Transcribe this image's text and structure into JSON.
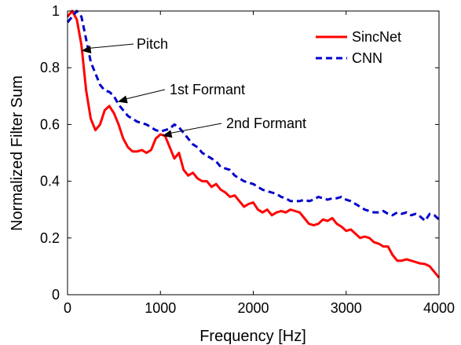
{
  "chart_data": {
    "type": "line",
    "xlabel": "Frequency [Hz]",
    "ylabel": "Normalized Filter Sum",
    "xlim": [
      0,
      4000
    ],
    "ylim": [
      0,
      1
    ],
    "xticks": [
      0,
      1000,
      2000,
      3000,
      4000
    ],
    "yticks": [
      0,
      0.2,
      0.4,
      0.6,
      0.8,
      1
    ],
    "xtick_labels": [
      "0",
      "1000",
      "2000",
      "3000",
      "4000"
    ],
    "ytick_labels": [
      "0",
      "0.2",
      "0.4",
      "0.6",
      "0.8",
      "1"
    ],
    "grid": false,
    "legend_position": "top-right",
    "series": [
      {
        "name": "SincNet",
        "color": "#ff0000",
        "style": "solid",
        "x": [
          0,
          50,
          100,
          150,
          200,
          250,
          300,
          350,
          400,
          450,
          500,
          550,
          600,
          650,
          700,
          750,
          800,
          850,
          900,
          950,
          1000,
          1050,
          1100,
          1150,
          1200,
          1250,
          1300,
          1350,
          1400,
          1450,
          1500,
          1550,
          1600,
          1650,
          1700,
          1750,
          1800,
          1850,
          1900,
          1950,
          2000,
          2050,
          2100,
          2150,
          2200,
          2250,
          2300,
          2350,
          2400,
          2450,
          2500,
          2550,
          2600,
          2650,
          2700,
          2750,
          2800,
          2850,
          2900,
          2950,
          3000,
          3050,
          3100,
          3150,
          3200,
          3250,
          3300,
          3350,
          3400,
          3450,
          3500,
          3550,
          3600,
          3650,
          3700,
          3750,
          3800,
          3850,
          3900,
          3950,
          4000
        ],
        "y": [
          0.98,
          1.0,
          0.97,
          0.88,
          0.72,
          0.62,
          0.58,
          0.6,
          0.65,
          0.665,
          0.64,
          0.6,
          0.55,
          0.52,
          0.505,
          0.505,
          0.51,
          0.5,
          0.51,
          0.55,
          0.565,
          0.56,
          0.52,
          0.48,
          0.5,
          0.44,
          0.42,
          0.43,
          0.41,
          0.4,
          0.4,
          0.38,
          0.39,
          0.37,
          0.36,
          0.345,
          0.35,
          0.33,
          0.31,
          0.32,
          0.325,
          0.3,
          0.29,
          0.3,
          0.28,
          0.29,
          0.295,
          0.29,
          0.3,
          0.295,
          0.29,
          0.27,
          0.25,
          0.245,
          0.25,
          0.265,
          0.26,
          0.27,
          0.25,
          0.24,
          0.225,
          0.23,
          0.215,
          0.2,
          0.205,
          0.2,
          0.185,
          0.18,
          0.17,
          0.17,
          0.14,
          0.12,
          0.12,
          0.125,
          0.12,
          0.115,
          0.11,
          0.108,
          0.1,
          0.08,
          0.06
        ]
      },
      {
        "name": "CNN",
        "color": "#0000cc",
        "style": "dashed",
        "x": [
          0,
          50,
          100,
          150,
          200,
          250,
          300,
          350,
          400,
          450,
          500,
          550,
          600,
          650,
          700,
          750,
          800,
          850,
          900,
          950,
          1000,
          1050,
          1100,
          1150,
          1200,
          1250,
          1300,
          1350,
          1400,
          1450,
          1500,
          1550,
          1600,
          1650,
          1700,
          1750,
          1800,
          1850,
          1900,
          1950,
          2000,
          2050,
          2100,
          2150,
          2200,
          2250,
          2300,
          2350,
          2400,
          2450,
          2500,
          2550,
          2600,
          2650,
          2700,
          2750,
          2800,
          2850,
          2900,
          2950,
          3000,
          3050,
          3100,
          3150,
          3200,
          3250,
          3300,
          3350,
          3400,
          3450,
          3500,
          3550,
          3600,
          3650,
          3700,
          3750,
          3800,
          3850,
          3900,
          3950,
          4000
        ],
        "y": [
          0.96,
          0.98,
          1.0,
          0.98,
          0.9,
          0.82,
          0.78,
          0.74,
          0.72,
          0.715,
          0.7,
          0.67,
          0.65,
          0.63,
          0.62,
          0.61,
          0.605,
          0.6,
          0.59,
          0.58,
          0.575,
          0.58,
          0.585,
          0.6,
          0.59,
          0.57,
          0.55,
          0.53,
          0.52,
          0.5,
          0.49,
          0.48,
          0.47,
          0.45,
          0.445,
          0.44,
          0.42,
          0.41,
          0.4,
          0.395,
          0.39,
          0.38,
          0.37,
          0.365,
          0.36,
          0.355,
          0.345,
          0.34,
          0.33,
          0.33,
          0.33,
          0.335,
          0.33,
          0.335,
          0.345,
          0.34,
          0.335,
          0.34,
          0.34,
          0.345,
          0.335,
          0.33,
          0.32,
          0.31,
          0.3,
          0.295,
          0.29,
          0.29,
          0.295,
          0.285,
          0.28,
          0.29,
          0.285,
          0.29,
          0.28,
          0.285,
          0.275,
          0.26,
          0.285,
          0.28,
          0.265
        ]
      }
    ],
    "legend": [
      {
        "label": "SincNet",
        "color": "#ff0000",
        "style": "solid"
      },
      {
        "label": "CNN",
        "color": "#0000cc",
        "style": "dashed"
      }
    ],
    "annotations": [
      {
        "text": "Pitch",
        "point": [
          150,
          0.86
        ]
      },
      {
        "text": "1st Formant",
        "point": [
          540,
          0.68
        ]
      },
      {
        "text": "2nd Formant",
        "point": [
          1020,
          0.56
        ]
      }
    ]
  }
}
